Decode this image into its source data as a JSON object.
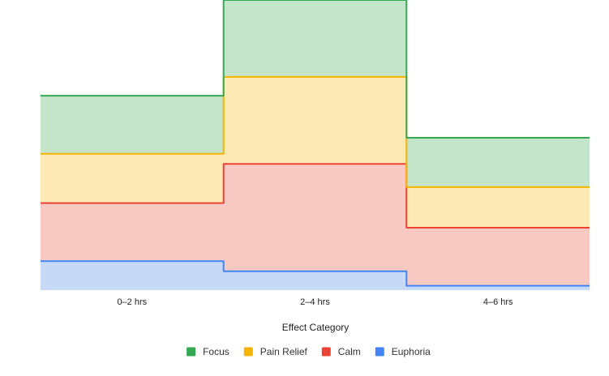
{
  "chart_data": {
    "type": "area",
    "stacked": true,
    "step": true,
    "categories": [
      "0–2 hrs",
      "2–4 hrs",
      "4–6 hrs"
    ],
    "xlabel": "Effect Category",
    "ylabel": "",
    "ylim": [
      0,
      100
    ],
    "grid": false,
    "legend_position": "bottom",
    "series": [
      {
        "name": "Euphoria",
        "values": [
          10,
          6.5,
          1.5
        ],
        "color": "#4285f4",
        "fill": "#c6d9f7"
      },
      {
        "name": "Calm",
        "values": [
          20,
          37,
          20
        ],
        "color": "#ea4335",
        "fill": "#f8c8c3"
      },
      {
        "name": "Pain Relief",
        "values": [
          17,
          30,
          14
        ],
        "color": "#f4b400",
        "fill": "#fde9b6"
      },
      {
        "name": "Focus",
        "values": [
          20,
          26.5,
          17
        ],
        "color": "#34a853",
        "fill": "#c4e5ca"
      }
    ]
  }
}
